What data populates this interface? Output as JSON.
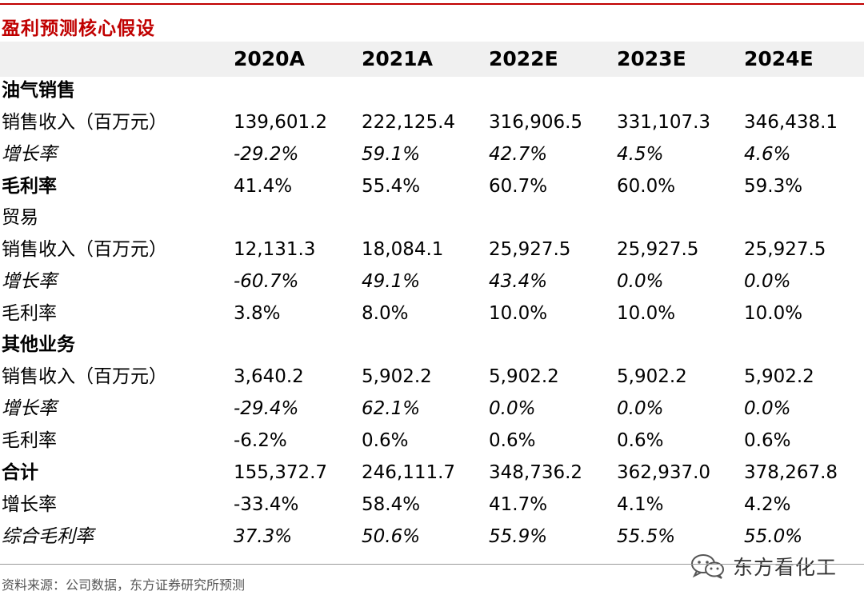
{
  "title": "盈利预测核心假设",
  "columns": [
    "2020A",
    "2021A",
    "2022E",
    "2023E",
    "2024E"
  ],
  "rows": [
    {
      "label": "油气销售",
      "values": [
        "",
        "",
        "",
        "",
        ""
      ]
    },
    {
      "label": "销售收入（百万元）",
      "values": [
        "139,601.2",
        "222,125.4",
        "316,906.5",
        "331,107.3",
        "346,438.1"
      ]
    },
    {
      "label": "增长率",
      "values": [
        "-29.2%",
        "59.1%",
        "42.7%",
        "4.5%",
        "4.6%"
      ]
    },
    {
      "label": "毛利率",
      "values": [
        "41.4%",
        "55.4%",
        "60.7%",
        "60.0%",
        "59.3%"
      ]
    },
    {
      "label": "贸易",
      "values": [
        "",
        "",
        "",
        "",
        ""
      ]
    },
    {
      "label": "销售收入（百万元）",
      "values": [
        "12,131.3",
        "18,084.1",
        "25,927.5",
        "25,927.5",
        "25,927.5"
      ]
    },
    {
      "label": "增长率",
      "values": [
        "-60.7%",
        "49.1%",
        "43.4%",
        "0.0%",
        "0.0%"
      ]
    },
    {
      "label": "毛利率",
      "values": [
        "3.8%",
        "8.0%",
        "10.0%",
        "10.0%",
        "10.0%"
      ]
    },
    {
      "label": "其他业务",
      "values": [
        "",
        "",
        "",
        "",
        ""
      ]
    },
    {
      "label": "销售收入（百万元）",
      "values": [
        "3,640.2",
        "5,902.2",
        "5,902.2",
        "5,902.2",
        "5,902.2"
      ]
    },
    {
      "label": "增长率",
      "values": [
        "-29.4%",
        "62.1%",
        "0.0%",
        "0.0%",
        "0.0%"
      ]
    },
    {
      "label": "毛利率",
      "values": [
        "-6.2%",
        "0.6%",
        "0.6%",
        "0.6%",
        "0.6%"
      ]
    },
    {
      "label": "合计",
      "values": [
        "155,372.7",
        "246,111.7",
        "348,736.2",
        "362,937.0",
        "378,267.8"
      ]
    },
    {
      "label": "增长率",
      "values": [
        "-33.4%",
        "58.4%",
        "41.7%",
        "4.1%",
        "4.2%"
      ]
    },
    {
      "label": "综合毛利率",
      "values": [
        "37.3%",
        "50.6%",
        "55.9%",
        "55.5%",
        "55.0%"
      ]
    }
  ],
  "source": "资料来源：公司数据，东方证券研究所预测",
  "watermark": {
    "text": "东方看化工",
    "icon": "wechat-icon"
  },
  "colors": {
    "title": "#c00000",
    "rule": "#c00000",
    "header_band": "#f0f0f0"
  }
}
